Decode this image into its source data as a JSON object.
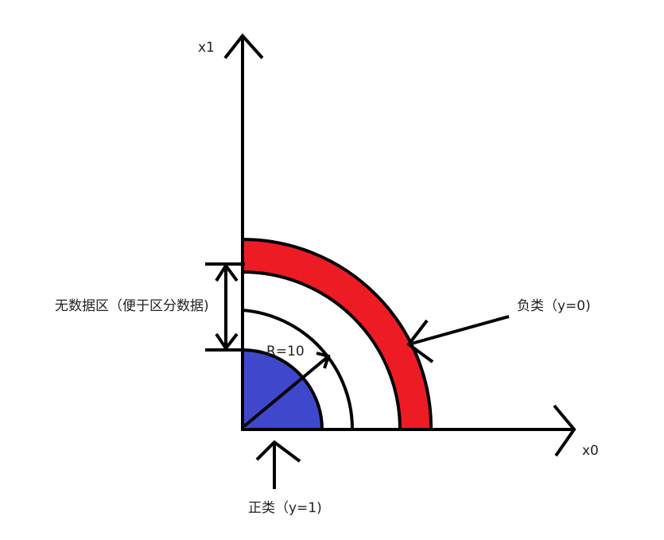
{
  "axes": {
    "x_label": "x0",
    "y_label": "x1"
  },
  "regions": {
    "positive": {
      "label": "正类（y=1)",
      "color": "#3f48cc"
    },
    "negative": {
      "label": "负类（y=0)",
      "color": "#ed1c24"
    },
    "gap": {
      "label": "无数据区（便于区分数据)"
    }
  },
  "radius_label": "R=10",
  "line_color": "#000000"
}
